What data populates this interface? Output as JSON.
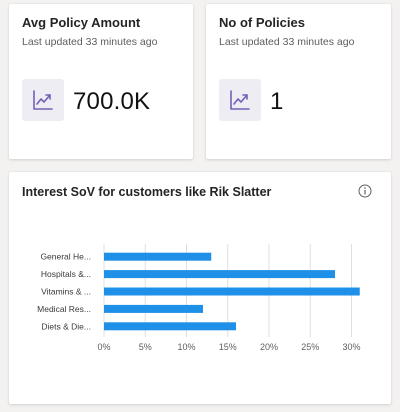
{
  "kpis": [
    {
      "title": "Avg Policy Amount",
      "subtitle": "Last updated 33 minutes ago",
      "value": "700.0K",
      "icon": "trend-chart-icon"
    },
    {
      "title": "No of Policies",
      "subtitle": "Last updated 33 minutes ago",
      "value": "1",
      "icon": "trend-chart-icon"
    }
  ],
  "colors": {
    "bar": "#1e90e8",
    "icon_bg": "#eeedf4",
    "icon_stroke": "#7460b8"
  },
  "chart_card": {
    "title": "Interest SoV for customers like Rik Slatter",
    "info_icon": "info-icon"
  },
  "chart_data": {
    "type": "bar",
    "orientation": "horizontal",
    "categories": [
      "General He...",
      "Hospitals &...",
      "Vitamins & ...",
      "Medical Res...",
      "Diets & Die..."
    ],
    "values": [
      13,
      28,
      31,
      12,
      16
    ],
    "xlim": [
      0,
      32
    ],
    "xticks": [
      "0%",
      "5%",
      "10%",
      "15%",
      "20%",
      "25%",
      "30%"
    ],
    "grid": true
  }
}
